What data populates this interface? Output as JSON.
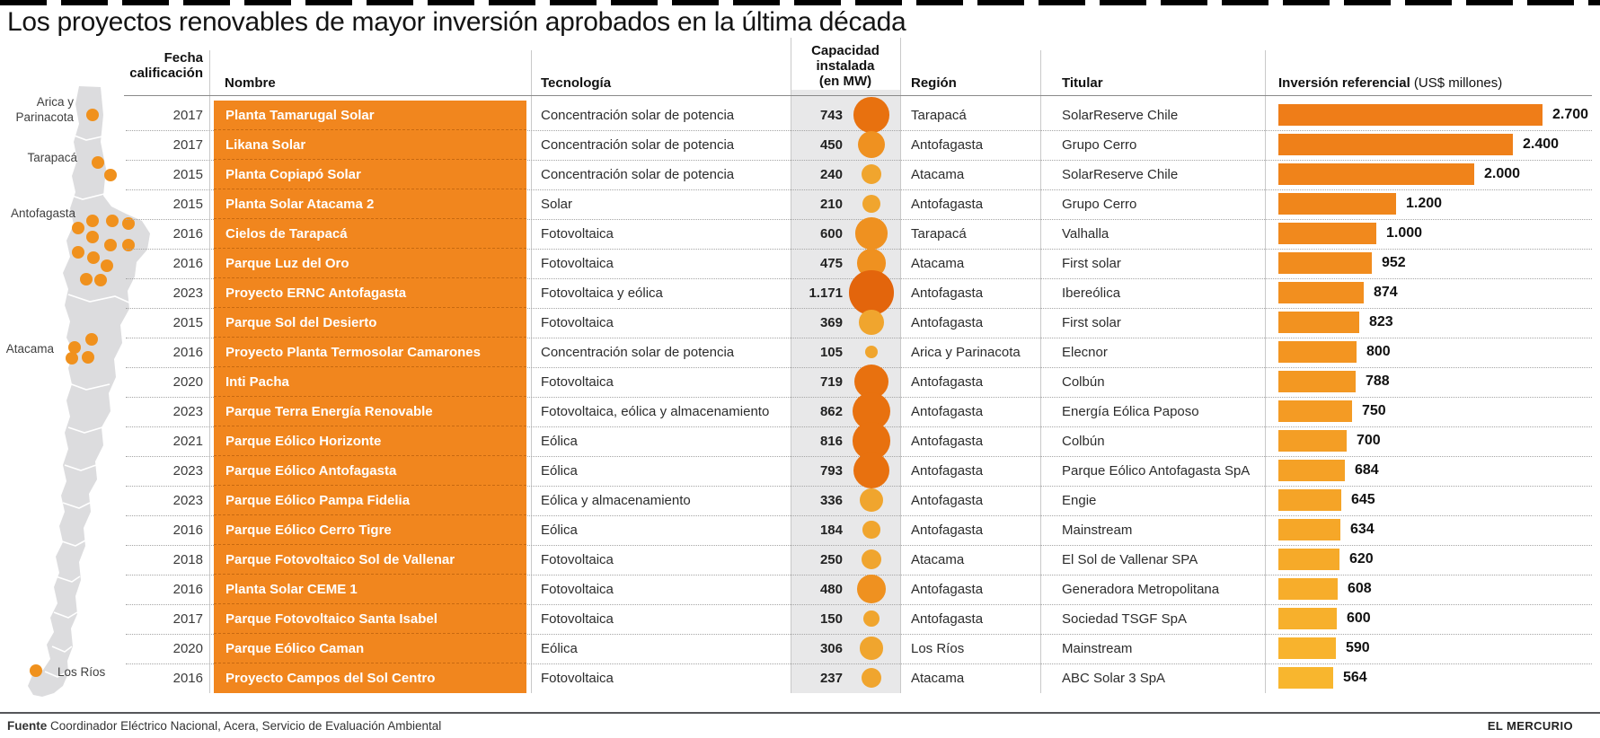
{
  "title": "Los proyectos renovables de mayor inversión aprobados en la última década",
  "header": {
    "fecha_line1": "Fecha",
    "fecha_line2": "calificación",
    "nombre": "Nombre",
    "tecnologia": "Tecnología",
    "capacidad_line1": "Capacidad",
    "capacidad_line2": "instalada",
    "capacidad_line3": "(en MW)",
    "region": "Región",
    "titular": "Titular",
    "inversion_bold": "Inversión referencial",
    "inversion_normal": " (US$ millones)"
  },
  "map": {
    "labels": [
      {
        "text": "Arica y"
      },
      {
        "text": "Parinacota"
      },
      {
        "text": "Tarapacá"
      },
      {
        "text": "Antofagasta"
      },
      {
        "text": "Atacama"
      },
      {
        "text": "Los Ríos"
      }
    ],
    "dots": [
      [
        103,
        128
      ],
      [
        109,
        181
      ],
      [
        123,
        195
      ],
      [
        103,
        246
      ],
      [
        125,
        246
      ],
      [
        143,
        249
      ],
      [
        87,
        254
      ],
      [
        103,
        264
      ],
      [
        123,
        273
      ],
      [
        143,
        273
      ],
      [
        87,
        281
      ],
      [
        104,
        287
      ],
      [
        119,
        296
      ],
      [
        96,
        311
      ],
      [
        112,
        312
      ],
      [
        102,
        378
      ],
      [
        83,
        387
      ],
      [
        80,
        399
      ],
      [
        98,
        398
      ],
      [
        40,
        747
      ]
    ]
  },
  "chart_data": {
    "type": "table",
    "note": "bar series = inversion (US$ millones); bubble series = capacidad instalada (MW)",
    "bar_axis": {
      "unit": "US$ millones",
      "max": 2700
    },
    "rows": [
      {
        "fecha": "2017",
        "nombre": "Planta Tamarugal Solar",
        "tecnologia": "Concentración solar de potencia",
        "capacidad_mw": 743,
        "capacidad_label": "743",
        "region": "Tarapacá",
        "titular": "SolarReserve Chile",
        "inversion": 2700,
        "inversion_label": "2.700"
      },
      {
        "fecha": "2017",
        "nombre": "Likana Solar",
        "tecnologia": "Concentración solar de potencia",
        "capacidad_mw": 450,
        "capacidad_label": "450",
        "region": "Antofagasta",
        "titular": "Grupo Cerro",
        "inversion": 2400,
        "inversion_label": "2.400"
      },
      {
        "fecha": "2015",
        "nombre": "Planta Copiapó Solar",
        "tecnologia": "Concentración solar de potencia",
        "capacidad_mw": 240,
        "capacidad_label": "240",
        "region": "Atacama",
        "titular": "SolarReserve Chile",
        "inversion": 2000,
        "inversion_label": "2.000"
      },
      {
        "fecha": "2015",
        "nombre": "Planta Solar Atacama 2",
        "tecnologia": "Solar",
        "capacidad_mw": 210,
        "capacidad_label": "210",
        "region": "Antofagasta",
        "titular": "Grupo Cerro",
        "inversion": 1200,
        "inversion_label": "1.200"
      },
      {
        "fecha": "2016",
        "nombre": "Cielos de Tarapacá",
        "tecnologia": "Fotovoltaica",
        "capacidad_mw": 600,
        "capacidad_label": "600",
        "region": "Tarapacá",
        "titular": "Valhalla",
        "inversion": 1000,
        "inversion_label": "1.000"
      },
      {
        "fecha": "2016",
        "nombre": "Parque Luz del Oro",
        "tecnologia": "Fotovoltaica",
        "capacidad_mw": 475,
        "capacidad_label": "475",
        "region": "Atacama",
        "titular": "First solar",
        "inversion": 952,
        "inversion_label": "952"
      },
      {
        "fecha": "2023",
        "nombre": "Proyecto ERNC Antofagasta",
        "tecnologia": "Fotovoltaica y eólica",
        "capacidad_mw": 1171,
        "capacidad_label": "1.171",
        "region": "Antofagasta",
        "titular": "Ibereólica",
        "inversion": 874,
        "inversion_label": "874"
      },
      {
        "fecha": "2015",
        "nombre": "Parque Sol del Desierto",
        "tecnologia": "Fotovoltaica",
        "capacidad_mw": 369,
        "capacidad_label": "369",
        "region": "Antofagasta",
        "titular": "First solar",
        "inversion": 823,
        "inversion_label": "823"
      },
      {
        "fecha": "2016",
        "nombre": "Proyecto Planta Termosolar Camarones",
        "tecnologia": "Concentración solar de potencia",
        "capacidad_mw": 105,
        "capacidad_label": "105",
        "region": "Arica y Parinacota",
        "titular": "Elecnor",
        "inversion": 800,
        "inversion_label": "800"
      },
      {
        "fecha": "2020",
        "nombre": "Inti Pacha",
        "tecnologia": "Fotovoltaica",
        "capacidad_mw": 719,
        "capacidad_label": "719",
        "region": "Antofagasta",
        "titular": "Colbún",
        "inversion": 788,
        "inversion_label": "788"
      },
      {
        "fecha": "2023",
        "nombre": "Parque Terra Energía Renovable",
        "tecnologia": "Fotovoltaica, eólica y almacenamiento",
        "capacidad_mw": 862,
        "capacidad_label": "862",
        "region": "Antofagasta",
        "titular": "Energía Eólica Paposo",
        "inversion": 750,
        "inversion_label": "750"
      },
      {
        "fecha": "2021",
        "nombre": "Parque Eólico Horizonte",
        "tecnologia": "Eólica",
        "capacidad_mw": 816,
        "capacidad_label": "816",
        "region": "Antofagasta",
        "titular": "Colbún",
        "inversion": 700,
        "inversion_label": "700"
      },
      {
        "fecha": "2023",
        "nombre": "Parque Eólico Antofagasta",
        "tecnologia": "Eólica",
        "capacidad_mw": 793,
        "capacidad_label": "793",
        "region": "Antofagasta",
        "titular": "Parque Eólico Antofagasta SpA",
        "inversion": 684,
        "inversion_label": "684"
      },
      {
        "fecha": "2023",
        "nombre": "Parque Eólico Pampa Fidelia",
        "tecnologia": "Eólica y almacenamiento",
        "capacidad_mw": 336,
        "capacidad_label": "336",
        "region": "Antofagasta",
        "titular": "Engie",
        "inversion": 645,
        "inversion_label": "645"
      },
      {
        "fecha": "2016",
        "nombre": "Parque Eólico Cerro Tigre",
        "tecnologia": "Eólica",
        "capacidad_mw": 184,
        "capacidad_label": "184",
        "region": "Antofagasta",
        "titular": "Mainstream",
        "inversion": 634,
        "inversion_label": "634"
      },
      {
        "fecha": "2018",
        "nombre": "Parque Fotovoltaico Sol de Vallenar",
        "tecnologia": "Fotovoltaica",
        "capacidad_mw": 250,
        "capacidad_label": "250",
        "region": "Atacama",
        "titular": "El Sol de Vallenar SPA",
        "inversion": 620,
        "inversion_label": "620"
      },
      {
        "fecha": "2016",
        "nombre": "Planta Solar CEME 1",
        "tecnologia": "Fotovoltaica",
        "capacidad_mw": 480,
        "capacidad_label": "480",
        "region": "Antofagasta",
        "titular": "Generadora Metropolitana",
        "inversion": 608,
        "inversion_label": "608"
      },
      {
        "fecha": "2017",
        "nombre": "Parque Fotovoltaico Santa Isabel",
        "tecnologia": "Fotovoltaica",
        "capacidad_mw": 150,
        "capacidad_label": "150",
        "region": "Antofagasta",
        "titular": "Sociedad TSGF SpA",
        "inversion": 600,
        "inversion_label": "600"
      },
      {
        "fecha": "2020",
        "nombre": "Parque Eólico Caman",
        "tecnologia": "Eólica",
        "capacidad_mw": 306,
        "capacidad_label": "306",
        "region": "Los Ríos",
        "titular": "Mainstream",
        "inversion": 590,
        "inversion_label": "590"
      },
      {
        "fecha": "2016",
        "nombre": "Proyecto Campos del Sol Centro",
        "tecnologia": "Fotovoltaica",
        "capacidad_mw": 237,
        "capacidad_label": "237",
        "region": "Atacama",
        "titular": "ABC Solar 3 SpA",
        "inversion": 564,
        "inversion_label": "564"
      }
    ]
  },
  "footer": {
    "fuente_bold": "Fuente",
    "fuente_text": " Coordinador Eléctrico Nacional, Acera, Servicio de Evaluación Ambiental",
    "credit": "EL MERCURIO"
  },
  "colors": {
    "name_cell_orange": "#f1861e",
    "name_cell_divider": "rgba(150,70,0,0.45)",
    "bar_color_start": "#ef7d18",
    "bar_color_end": "#f8b62e",
    "bubble_xl": "#e3650c",
    "bubble_large": "#e8710f",
    "bubble_mid": "#ef9120",
    "bubble_small": "#f0a52e",
    "map_fill": "#dcdcde",
    "map_dot": "#f0911d",
    "band_gray": "#e8e8e9"
  }
}
